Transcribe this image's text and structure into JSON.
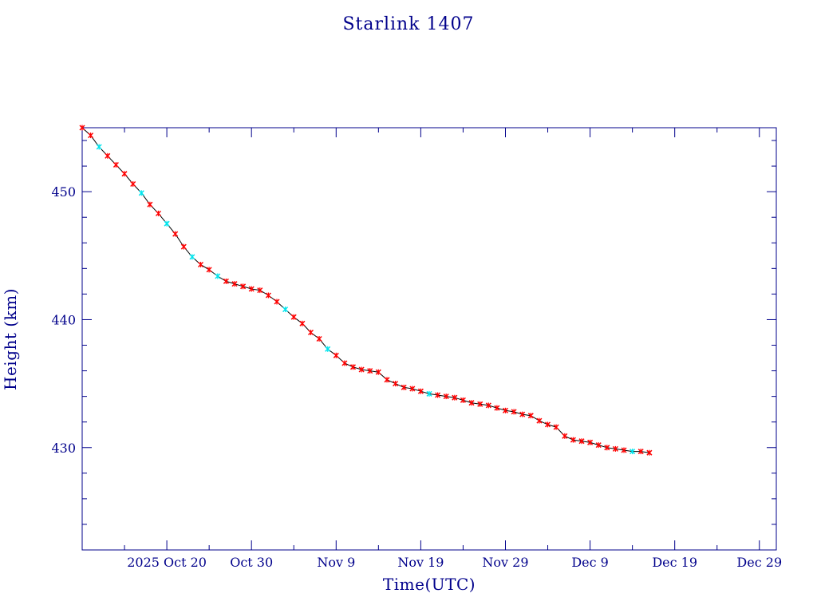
{
  "chart_data": {
    "type": "line",
    "title": "Starlink 1407",
    "xlabel": "Time(UTC)",
    "ylabel": "Height (km)",
    "x_tick_labels": [
      "2025 Oct 20",
      "Oct 30",
      "Nov  9",
      "Nov 19",
      "Nov 29",
      "Dec  9",
      "Dec 19",
      "Dec 29"
    ],
    "x_ticks": [
      "2025-10-20",
      "2025-10-30",
      "2025-11-09",
      "2025-11-19",
      "2025-11-29",
      "2025-12-09",
      "2025-12-19",
      "2025-12-29"
    ],
    "y_ticks": [
      430,
      440,
      450
    ],
    "xlim": [
      "2025-10-10",
      "2025-12-31"
    ],
    "ylim": [
      422,
      455
    ],
    "grid": false,
    "colors": {
      "axes": "#00008b",
      "line": "#000000",
      "marker_primary": "#ff0000",
      "marker_secondary": "#00e5ee"
    },
    "series": [
      {
        "x": [
          "2025-10-10",
          "2025-10-11",
          "2025-10-12",
          "2025-10-13",
          "2025-10-14",
          "2025-10-15",
          "2025-10-16",
          "2025-10-17",
          "2025-10-18",
          "2025-10-19",
          "2025-10-20",
          "2025-10-21",
          "2025-10-22",
          "2025-10-23",
          "2025-10-24",
          "2025-10-25",
          "2025-10-26",
          "2025-10-27",
          "2025-10-28",
          "2025-10-29",
          "2025-10-30",
          "2025-10-31",
          "2025-11-01",
          "2025-11-02",
          "2025-11-03",
          "2025-11-04",
          "2025-11-05",
          "2025-11-06",
          "2025-11-07",
          "2025-11-08",
          "2025-11-09",
          "2025-11-10",
          "2025-11-11",
          "2025-11-12",
          "2025-11-13",
          "2025-11-14",
          "2025-11-15",
          "2025-11-16",
          "2025-11-17",
          "2025-11-18",
          "2025-11-19",
          "2025-11-20",
          "2025-11-21",
          "2025-11-22",
          "2025-11-23",
          "2025-11-24",
          "2025-11-25",
          "2025-11-26",
          "2025-11-27",
          "2025-11-28",
          "2025-11-29",
          "2025-11-30",
          "2025-12-01",
          "2025-12-02",
          "2025-12-03",
          "2025-12-04",
          "2025-12-05",
          "2025-12-06",
          "2025-12-07",
          "2025-12-08",
          "2025-12-09",
          "2025-12-10",
          "2025-12-11",
          "2025-12-12",
          "2025-12-13",
          "2025-12-14",
          "2025-12-15",
          "2025-12-16"
        ],
        "y": [
          455.0,
          454.4,
          453.5,
          452.8,
          452.1,
          451.4,
          450.6,
          449.9,
          449.0,
          448.3,
          447.5,
          446.7,
          445.7,
          444.9,
          444.3,
          443.9,
          443.4,
          443.0,
          442.8,
          442.6,
          442.4,
          442.3,
          441.9,
          441.4,
          440.8,
          440.2,
          439.7,
          439.0,
          438.5,
          437.7,
          437.2,
          436.6,
          436.3,
          436.1,
          436.0,
          435.9,
          435.3,
          435.0,
          434.7,
          434.6,
          434.4,
          434.2,
          434.1,
          434.0,
          433.9,
          433.7,
          433.5,
          433.4,
          433.3,
          433.1,
          432.9,
          432.8,
          432.6,
          432.5,
          432.1,
          431.8,
          431.6,
          430.9,
          430.6,
          430.5,
          430.4,
          430.2,
          430.0,
          429.9,
          429.8,
          429.7,
          429.7,
          429.6
        ],
        "highlighted_dates": [
          "2025-10-12",
          "2025-10-17",
          "2025-10-20",
          "2025-10-23",
          "2025-10-26",
          "2025-11-03",
          "2025-11-08",
          "2025-11-20",
          "2025-12-14"
        ]
      }
    ]
  }
}
